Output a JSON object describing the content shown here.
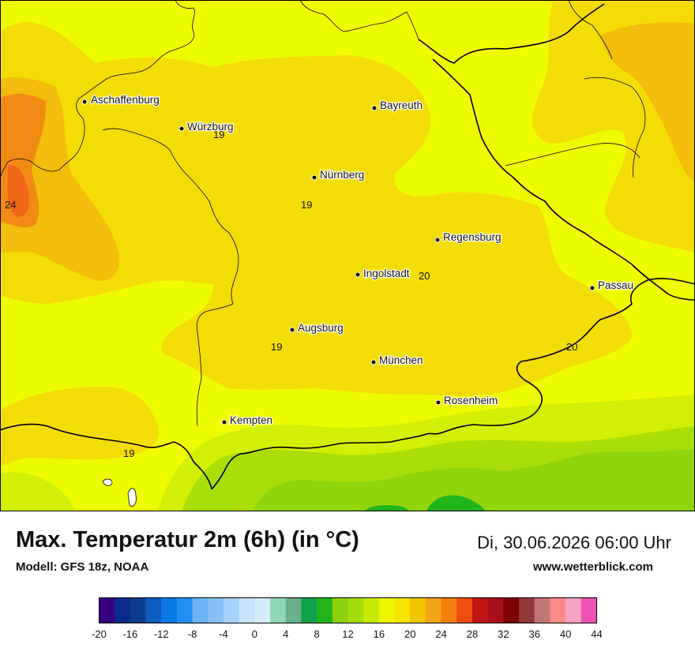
{
  "title": "Max. Temperatur 2m (6h) (in °C)",
  "model": "Modell: GFS 18z, NOAA",
  "datetime": "Di, 30.06.2026 06:00 Uhr",
  "website": "www.wetterblick.com",
  "cities": [
    {
      "name": "Aschaffenburg"
    },
    {
      "name": "Würzburg"
    },
    {
      "name": "Bayreuth"
    },
    {
      "name": "Nürnberg"
    },
    {
      "name": "Regensburg"
    },
    {
      "name": "Ingolstadt"
    },
    {
      "name": "Passau"
    },
    {
      "name": "Augsburg"
    },
    {
      "name": "München"
    },
    {
      "name": "Rosenheim"
    },
    {
      "name": "Kempten"
    }
  ],
  "isolabels": [
    "19",
    "24",
    "19",
    "20",
    "19",
    "20",
    "19"
  ],
  "legend": {
    "colors": [
      "#35007e",
      "#0a2b8c",
      "#0b3d8c",
      "#0d5dbf",
      "#0a79e8",
      "#2290f2",
      "#6db3f5",
      "#86c0f7",
      "#a6d1f8",
      "#c7e2fb",
      "#d8ebfc",
      "#8ed8b6",
      "#6ab08a",
      "#10a24b",
      "#22b41b",
      "#8dd10e",
      "#a2dc0a",
      "#c8eb04",
      "#eef600",
      "#f7e500",
      "#f1c400",
      "#f2a318",
      "#f47e0e",
      "#ec4e10",
      "#bf1414",
      "#a80f1a",
      "#7d0000",
      "#90393b",
      "#c47676",
      "#fb8a8a",
      "#f7a4c4",
      "#ec52b3"
    ],
    "ticks": [
      "-20",
      "-16",
      "-12",
      "-8",
      "-4",
      "0",
      "4",
      "8",
      "12",
      "16",
      "20",
      "24",
      "28",
      "32",
      "36",
      "40",
      "44"
    ]
  }
}
